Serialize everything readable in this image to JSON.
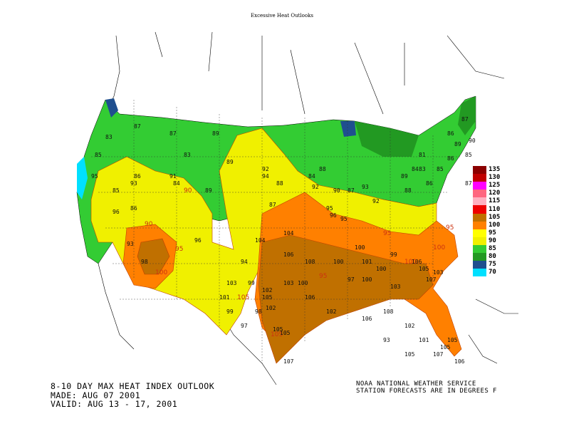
{
  "page": {
    "title": "Excessive Heat Outlooks"
  },
  "footer": {
    "left_lines": [
      "8-10 DAY MAX HEAT INDEX OUTLOOK",
      "MADE: AUG 07 2001",
      "VALID: AUG 13 - 17, 2001"
    ],
    "right_lines": [
      "NOAA NATIONAL WEATHER SERVICE",
      "STATION FORECASTS ARE IN DEGREES F"
    ]
  },
  "legend": {
    "items": [
      {
        "label": "135",
        "color": "#8b0000"
      },
      {
        "label": "130",
        "color": "#c00000"
      },
      {
        "label": "125",
        "color": "#ff00ff"
      },
      {
        "label": "120",
        "color": "#ff6680"
      },
      {
        "label": "115",
        "color": "#ffb0c0"
      },
      {
        "label": "110",
        "color": "#ee0000"
      },
      {
        "label": "105",
        "color": "#c07000"
      },
      {
        "label": "100",
        "color": "#ff8000"
      },
      {
        "label": "95",
        "color": "#ffff00"
      },
      {
        "label": "90",
        "color": "#f0f000"
      },
      {
        "label": "85",
        "color": "#33cc33"
      },
      {
        "label": "80",
        "color": "#229922"
      },
      {
        "label": "75",
        "color": "#1f4f8f"
      },
      {
        "label": "70",
        "color": "#00e0ff"
      }
    ]
  },
  "map": {
    "contour_labels": [
      "90",
      "90",
      "95",
      "100",
      "105",
      "95",
      "100",
      "105",
      "100",
      "95",
      "95"
    ],
    "station_values": [
      "87",
      "83",
      "85",
      "87",
      "89",
      "89",
      "83",
      "84",
      "94",
      "89",
      "87",
      "91",
      "85",
      "86",
      "93",
      "86",
      "98",
      "96",
      "104",
      "106",
      "108",
      "105",
      "102",
      "105",
      "106",
      "105",
      "107",
      "103",
      "100",
      "100",
      "101",
      "100",
      "99",
      "100",
      "103",
      "106",
      "105",
      "107",
      "103",
      "97",
      "95",
      "92",
      "95",
      "96",
      "92",
      "88",
      "84",
      "88",
      "90",
      "87",
      "93",
      "92",
      "88",
      "89",
      "84",
      "86",
      "85",
      "86",
      "89",
      "85",
      "86",
      "87",
      "90",
      "87",
      "86",
      "81",
      "83",
      "95",
      "96",
      "93",
      "94",
      "99",
      "98",
      "97",
      "99",
      "101",
      "103",
      "104",
      "102",
      "100",
      "102",
      "106",
      "108",
      "102",
      "101",
      "105",
      "93",
      "105",
      "106",
      "105",
      "107"
    ]
  }
}
